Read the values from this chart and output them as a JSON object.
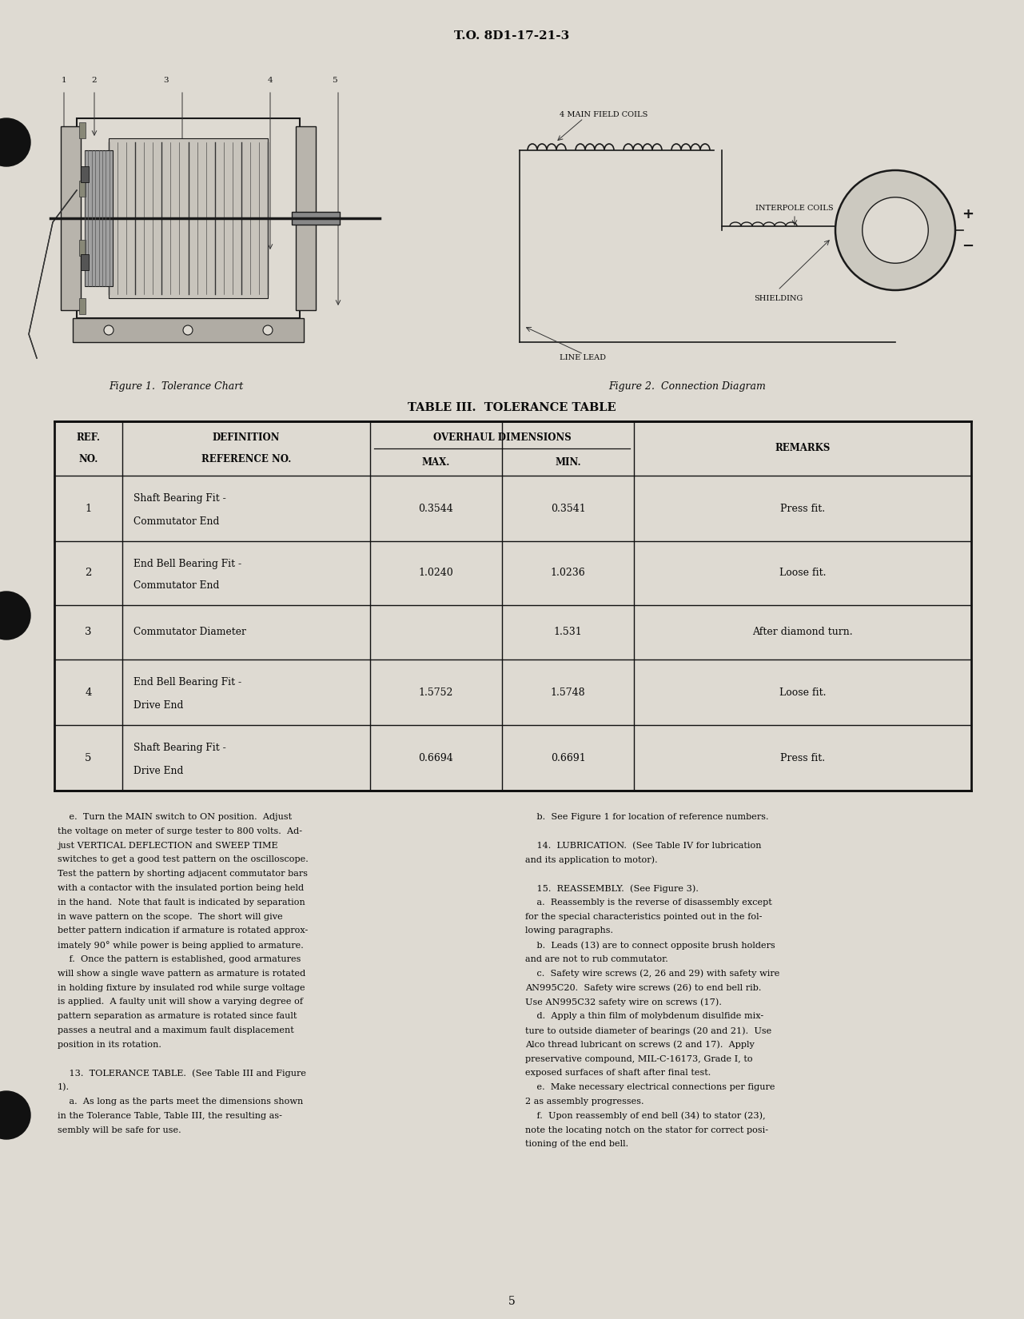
{
  "page_header": "T.O. 8D1-17-21-3",
  "page_number": "5",
  "fig1_caption": "Figure 1.  Tolerance Chart",
  "fig2_caption": "Figure 2.  Connection Diagram",
  "table_title": "TABLE III.  TOLERANCE TABLE",
  "table_rows": [
    {
      "ref": "1",
      "def1": "Shaft Bearing Fit -",
      "def2": "Commutator End",
      "max": "0.3544",
      "min": "0.3541",
      "remarks": "Press fit."
    },
    {
      "ref": "2",
      "def1": "End Bell Bearing Fit -",
      "def2": "Commutator End",
      "max": "1.0240",
      "min": "1.0236",
      "remarks": "Loose fit."
    },
    {
      "ref": "3",
      "def1": "Commutator Diameter",
      "def2": "",
      "max": "",
      "min": "1.531",
      "remarks": "After diamond turn."
    },
    {
      "ref": "4",
      "def1": "End Bell Bearing Fit -",
      "def2": "Drive End",
      "max": "1.5752",
      "min": "1.5748",
      "remarks": "Loose fit."
    },
    {
      "ref": "5",
      "def1": "Shaft Bearing Fit -",
      "def2": "Drive End",
      "max": "0.6694",
      "min": "0.6691",
      "remarks": "Press fit."
    }
  ],
  "left_body": [
    "    e.  Turn the MAIN switch to ON position.  Adjust",
    "the voltage on meter of surge tester to 800 volts.  Ad-",
    "just VERTICAL DEFLECTION and SWEEP TIME",
    "switches to get a good test pattern on the oscilloscope.",
    "Test the pattern by shorting adjacent commutator bars",
    "with a contactor with the insulated portion being held",
    "in the hand.  Note that fault is indicated by separation",
    "in wave pattern on the scope.  The short will give",
    "better pattern indication if armature is rotated approx-",
    "imately 90° while power is being applied to armature.",
    "    f.  Once the pattern is established, good armatures",
    "will show a single wave pattern as armature is rotated",
    "in holding fixture by insulated rod while surge voltage",
    "is applied.  A faulty unit will show a varying degree of",
    "pattern separation as armature is rotated since fault",
    "passes a neutral and a maximum fault displacement",
    "position in its rotation.",
    "",
    "    13.  TOLERANCE TABLE.  (See Table III and Figure",
    "1).",
    "    a.  As long as the parts meet the dimensions shown",
    "in the Tolerance Table, Table III, the resulting as-",
    "sembly will be safe for use."
  ],
  "right_body": [
    "    b.  See Figure 1 for location of reference numbers.",
    "",
    "    14.  LUBRICATION.  (See Table IV for lubrication",
    "and its application to motor).",
    "",
    "    15.  REASSEMBLY.  (See Figure 3).",
    "    a.  Reassembly is the reverse of disassembly except",
    "for the special characteristics pointed out in the fol-",
    "lowing paragraphs.",
    "    b.  Leads (13) are to connect opposite brush holders",
    "and are not to rub commutator.",
    "    c.  Safety wire screws (2, 26 and 29) with safety wire",
    "AN995C20.  Safety wire screws (26) to end bell rib.",
    "Use AN995C32 safety wire on screws (17).",
    "    d.  Apply a thin film of molybdenum disulfide mix-",
    "ture to outside diameter of bearings (20 and 21).  Use",
    "Alco thread lubricant on screws (2 and 17).  Apply",
    "preservative compound, MIL-C-16173, Grade I, to",
    "exposed surfaces of shaft after final test.",
    "    e.  Make necessary electrical connections per figure",
    "2 as assembly progresses.",
    "    f.  Upon reassembly of end bell (34) to stator (23),",
    "note the locating notch on the stator for correct posi-",
    "tioning of the end bell."
  ],
  "bg_color": "#dedad2"
}
